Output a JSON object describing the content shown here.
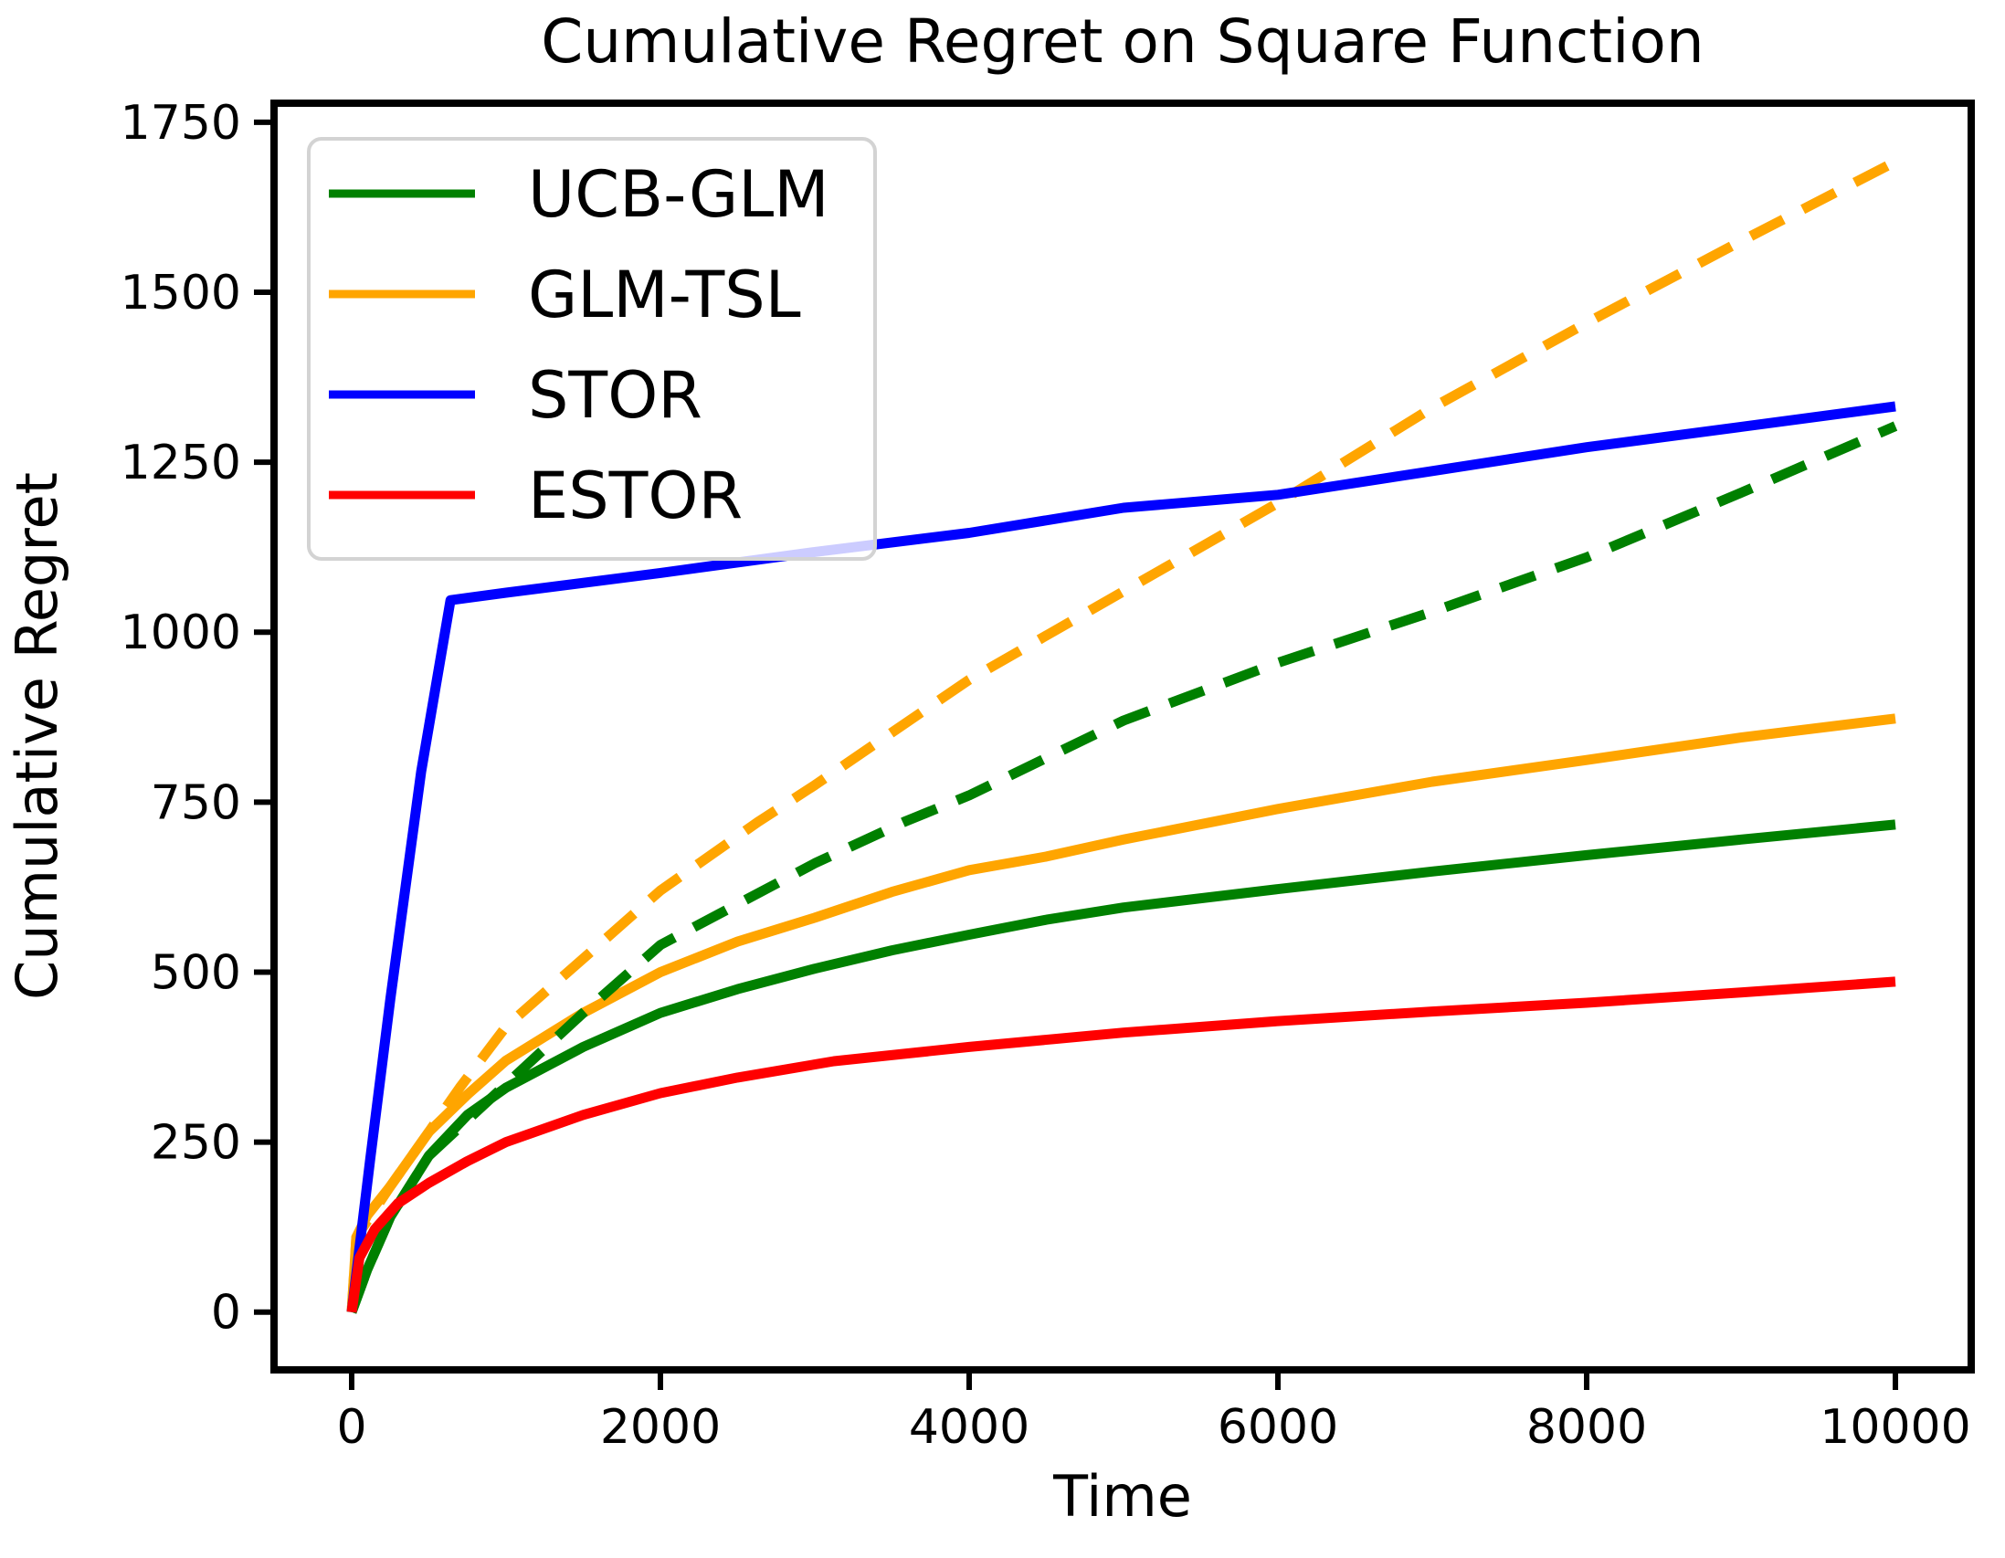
{
  "chart_data": {
    "type": "line",
    "title": "Cumulative Regret on Square Function",
    "xlabel": "Time",
    "ylabel": "Cumulative Regret",
    "xlim": [
      -503,
      10491
    ],
    "ylim": [
      -85,
      1778
    ],
    "x_ticks": [
      0,
      2000,
      4000,
      6000,
      8000,
      10000
    ],
    "y_ticks": [
      0,
      250,
      500,
      750,
      1000,
      1250,
      1500,
      1750
    ],
    "grid": false,
    "background_color": "#ffffff",
    "axis_color": "#000000",
    "legend_position": "upper left",
    "legend": [
      {
        "label": "UCB-GLM",
        "color": "#008000"
      },
      {
        "label": "GLM-TSL",
        "color": "#FFA500"
      },
      {
        "label": "STOR",
        "color": "#0000FF"
      },
      {
        "label": "ESTOR",
        "color": "#FF0000"
      }
    ],
    "series": [
      {
        "name": "UCB-GLM",
        "color": "#008000",
        "style": "solid",
        "points": [
          [
            0,
            0
          ],
          [
            100,
            62
          ],
          [
            250,
            140
          ],
          [
            500,
            230
          ],
          [
            750,
            290
          ],
          [
            1000,
            330
          ],
          [
            1500,
            390
          ],
          [
            2000,
            440
          ],
          [
            2500,
            475
          ],
          [
            3000,
            505
          ],
          [
            3500,
            532
          ],
          [
            4000,
            555
          ],
          [
            4500,
            577
          ],
          [
            5000,
            595
          ],
          [
            6000,
            622
          ],
          [
            7000,
            648
          ],
          [
            8000,
            672
          ],
          [
            9000,
            695
          ],
          [
            10000,
            717
          ]
        ]
      },
      {
        "name": "GLM-TSL",
        "color": "#FFA500",
        "style": "solid",
        "points": [
          [
            0,
            0
          ],
          [
            30,
            110
          ],
          [
            100,
            142
          ],
          [
            250,
            185
          ],
          [
            500,
            265
          ],
          [
            750,
            320
          ],
          [
            1000,
            370
          ],
          [
            1500,
            440
          ],
          [
            2000,
            500
          ],
          [
            2500,
            545
          ],
          [
            3000,
            580
          ],
          [
            3500,
            618
          ],
          [
            4000,
            650
          ],
          [
            4500,
            670
          ],
          [
            5000,
            695
          ],
          [
            6000,
            740
          ],
          [
            7000,
            780
          ],
          [
            8000,
            812
          ],
          [
            9000,
            845
          ],
          [
            10000,
            873
          ]
        ]
      },
      {
        "name": "UCB-GLM-dashed",
        "color": "#008000",
        "style": "dashed",
        "points": [
          [
            0,
            0
          ],
          [
            100,
            62
          ],
          [
            250,
            140
          ],
          [
            500,
            230
          ],
          [
            1000,
            335
          ],
          [
            1500,
            440
          ],
          [
            2000,
            540
          ],
          [
            2500,
            600
          ],
          [
            3000,
            660
          ],
          [
            3580,
            721
          ],
          [
            4000,
            760
          ],
          [
            5000,
            870
          ],
          [
            6000,
            955
          ],
          [
            7000,
            1030
          ],
          [
            8000,
            1110
          ],
          [
            9000,
            1205
          ],
          [
            10000,
            1303
          ]
        ]
      },
      {
        "name": "GLM-TSL-dashed",
        "color": "#FFA500",
        "style": "dashed",
        "points": [
          [
            0,
            0
          ],
          [
            30,
            110
          ],
          [
            250,
            185
          ],
          [
            500,
            265
          ],
          [
            700,
            330
          ],
          [
            1000,
            420
          ],
          [
            1500,
            520
          ],
          [
            2000,
            620
          ],
          [
            2633,
            721
          ],
          [
            3000,
            775
          ],
          [
            4000,
            930
          ],
          [
            5000,
            1060
          ],
          [
            6000,
            1190
          ],
          [
            7000,
            1330
          ],
          [
            8000,
            1455
          ],
          [
            9000,
            1575
          ],
          [
            10000,
            1692
          ]
        ]
      },
      {
        "name": "STOR",
        "color": "#0000FF",
        "style": "solid",
        "points": [
          [
            0,
            0
          ],
          [
            120,
            225
          ],
          [
            250,
            460
          ],
          [
            450,
            795
          ],
          [
            640,
            1047
          ],
          [
            1000,
            1058
          ],
          [
            2000,
            1087
          ],
          [
            3000,
            1118
          ],
          [
            4000,
            1146
          ],
          [
            5000,
            1183
          ],
          [
            6000,
            1202
          ],
          [
            7000,
            1237
          ],
          [
            8000,
            1272
          ],
          [
            9000,
            1302
          ],
          [
            10000,
            1332
          ]
        ]
      },
      {
        "name": "ESTOR",
        "color": "#FF0000",
        "style": "solid",
        "points": [
          [
            0,
            0
          ],
          [
            50,
            80
          ],
          [
            150,
            122
          ],
          [
            300,
            160
          ],
          [
            500,
            190
          ],
          [
            750,
            222
          ],
          [
            1000,
            250
          ],
          [
            1500,
            290
          ],
          [
            2000,
            322
          ],
          [
            2500,
            345
          ],
          [
            3124,
            369
          ],
          [
            4000,
            390
          ],
          [
            5000,
            411
          ],
          [
            6000,
            428
          ],
          [
            7000,
            442
          ],
          [
            8000,
            455
          ],
          [
            9000,
            470
          ],
          [
            10000,
            486
          ]
        ]
      }
    ]
  }
}
